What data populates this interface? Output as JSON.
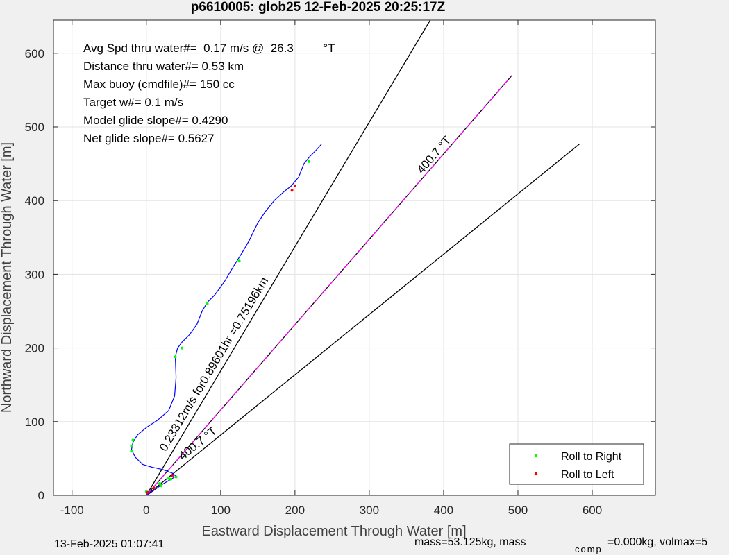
{
  "chart_data": {
    "type": "line",
    "title": "p6610005: glob25 12-Feb-2025 20:25:17Z",
    "xlabel": "Eastward Displacement Through Water [m]",
    "ylabel": "Northward Displacement Through Water [m]",
    "xlim": [
      -125,
      685
    ],
    "ylim": [
      0,
      645
    ],
    "xticks": [
      -100,
      0,
      100,
      200,
      300,
      400,
      500,
      600
    ],
    "yticks": [
      0,
      100,
      200,
      300,
      400,
      500,
      600
    ],
    "grid": true,
    "annotations": [
      "Avg Spd thru water#=  0.17 m/s @  26.3         °T",
      "Distance thru water#=  0.53 km",
      "Max buoy (cmdfile)#= 150 cc",
      "Target w#= 0.1 m/s",
      "Model glide slope#= 0.4290",
      "Net glide slope#= 0.5627"
    ],
    "line_labels": {
      "heading_line": "400.7 °T",
      "lower_line": "400.7 °T",
      "mid_line": "0.23312m/s for0.89601hr =0.75196km"
    },
    "track": {
      "x": [
        0,
        5,
        12,
        20,
        30,
        40,
        35,
        22,
        8,
        -5,
        -15,
        -20,
        -18,
        -12,
        0,
        15,
        30,
        38,
        40,
        39,
        42,
        48,
        58,
        68,
        75,
        82,
        92,
        105,
        118,
        128,
        138,
        150,
        160,
        172,
        185,
        195,
        205,
        212,
        220,
        228,
        236
      ],
      "y": [
        0,
        3,
        8,
        14,
        20,
        26,
        30,
        35,
        38,
        42,
        52,
        62,
        72,
        82,
        92,
        102,
        115,
        135,
        160,
        188,
        200,
        208,
        218,
        232,
        250,
        262,
        272,
        290,
        312,
        328,
        345,
        370,
        385,
        400,
        412,
        420,
        432,
        450,
        460,
        468,
        477
      ]
    },
    "lines": [
      {
        "name": "",
        "x": [
          0,
          382
        ],
        "y": [
          0,
          645
        ],
        "color": "#000000"
      },
      {
        "name": "",
        "x": [
          0,
          583
        ],
        "y": [
          0,
          477
        ],
        "color": "#000000"
      },
      {
        "name": "",
        "x": [
          0,
          492
        ],
        "y": [
          0,
          570
        ],
        "color": "#000000",
        "dashed_overlay": "#ff00ff"
      }
    ],
    "roll_right": {
      "x": [
        -20,
        -20,
        -18,
        18,
        30,
        40,
        39,
        48,
        82,
        125,
        219,
        0,
        20,
        33
      ],
      "y": [
        60,
        67,
        75,
        16,
        23,
        25,
        188,
        200,
        260,
        318,
        453,
        5,
        13,
        22
      ]
    },
    "roll_left": {
      "x": [
        200,
        196,
        35,
        2,
        10
      ],
      "y": [
        420,
        414,
        27,
        4,
        10
      ]
    },
    "legend": {
      "position": "bottom-right",
      "entries": [
        {
          "label": "Roll to Right",
          "color": "#00ff00"
        },
        {
          "label": "Roll to Left",
          "color": "#ff0000"
        }
      ]
    }
  },
  "footer": {
    "timestamp": "13-Feb-2025 01:07:41",
    "mass_text": "mass=53.125kg, mass",
    "comp_sub": "comp",
    "mass_comp_text": "=0.000kg, volmax=5"
  },
  "colors": {
    "track": "#0000ff",
    "lines": "#000000",
    "dashed": "#ff00ff",
    "roll_right": "#00ff00",
    "roll_left": "#ff0000",
    "background": "#f0f0f0",
    "axes_bg": "#ffffff"
  }
}
